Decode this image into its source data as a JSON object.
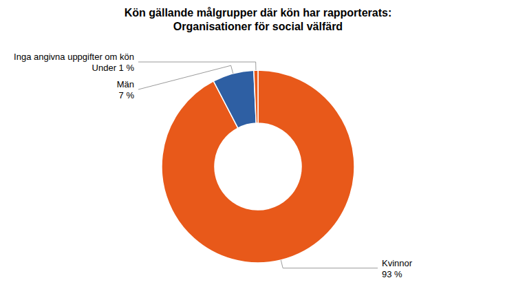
{
  "chart_data": {
    "type": "pie",
    "title": "Kön gällande målgrupper där kön har rapporterats:",
    "subtitle": "Organisationer för social välfärd",
    "categories": [
      "Kvinnor",
      "Män",
      "Inga angivna uppgifter om kön"
    ],
    "values": [
      93,
      7,
      0.7
    ],
    "value_labels": [
      "93 %",
      "7 %",
      "Under 1 %"
    ],
    "colors": [
      "#E8591A",
      "#2E5FA3",
      "#E8591A"
    ]
  }
}
